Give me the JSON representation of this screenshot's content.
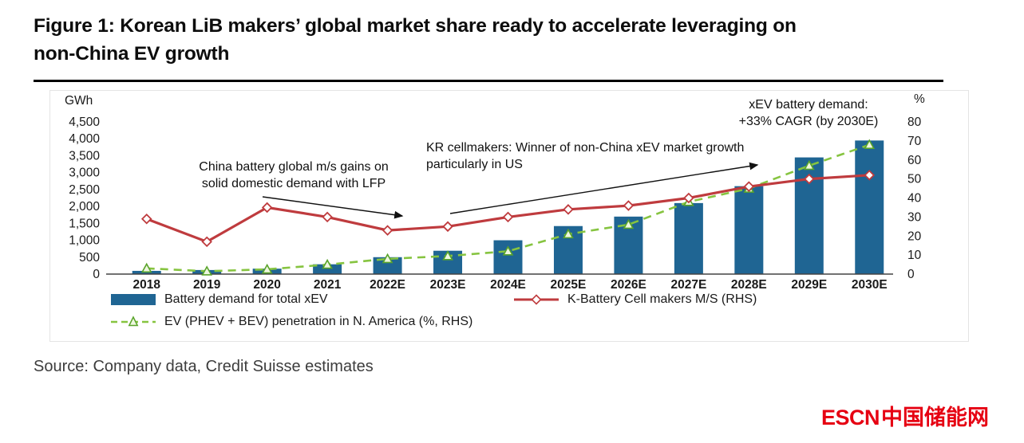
{
  "title": {
    "line1": "Figure 1: Korean LiB makers’ global market share ready to accelerate leveraging on",
    "line2": "non-China EV growth"
  },
  "source": "Source: Company data, Credit Suisse estimates",
  "logo": {
    "latin": "ESCN",
    "chinese": "中国储能网"
  },
  "chart_data": {
    "type": "bar",
    "subtype": "bar + two lines (dual axis)",
    "categories": [
      "2018",
      "2019",
      "2020",
      "2021",
      "2022E",
      "2023E",
      "2024E",
      "2025E",
      "2026E",
      "2027E",
      "2028E",
      "2029E",
      "2030E"
    ],
    "left_axis": {
      "label": "GWh",
      "min": 0,
      "max": 4500,
      "step": 500
    },
    "right_axis": {
      "label": "%",
      "min": 0,
      "max": 80,
      "step": 10
    },
    "grid": "off",
    "legend_position": "bottom",
    "series": [
      {
        "name": "Battery demand for total xEV",
        "type": "bar",
        "axis": "left",
        "color": "#1f6593",
        "values": [
          95,
          120,
          160,
          290,
          500,
          690,
          1000,
          1420,
          1700,
          2100,
          2600,
          3450,
          3950
        ]
      },
      {
        "name": "K-Battery Cell makers M/S (RHS)",
        "type": "line",
        "axis": "right",
        "style": "solid",
        "marker": "diamond",
        "color": "#bf3b3e",
        "marker_fill": "#ffffff",
        "marker_stroke": "#bf3b3e",
        "values": [
          29,
          17,
          35,
          30,
          23,
          25,
          30,
          34,
          36,
          40,
          46,
          50,
          52
        ]
      },
      {
        "name": "EV (PHEV + BEV) penetration in N. America (%, RHS)",
        "type": "line",
        "axis": "right",
        "style": "dashed",
        "marker": "triangle",
        "color": "#86c440",
        "marker_fill": "#eef7e0",
        "marker_stroke": "#5aa42b",
        "values": [
          3,
          1.5,
          2.5,
          5,
          8,
          9.5,
          12,
          21,
          26,
          38,
          45,
          57,
          68
        ]
      }
    ],
    "annotations": [
      {
        "id": "china-lfp",
        "text": "China battery global m/s gains on\nsolid domestic demand with LFP"
      },
      {
        "id": "kr-cellmakers",
        "text": "KR cellmakers: Winner of non-China xEV market growth\nparticularly in US"
      },
      {
        "id": "cagr",
        "text": "xEV battery demand:\n+33% CAGR (by 2030E)"
      }
    ]
  }
}
